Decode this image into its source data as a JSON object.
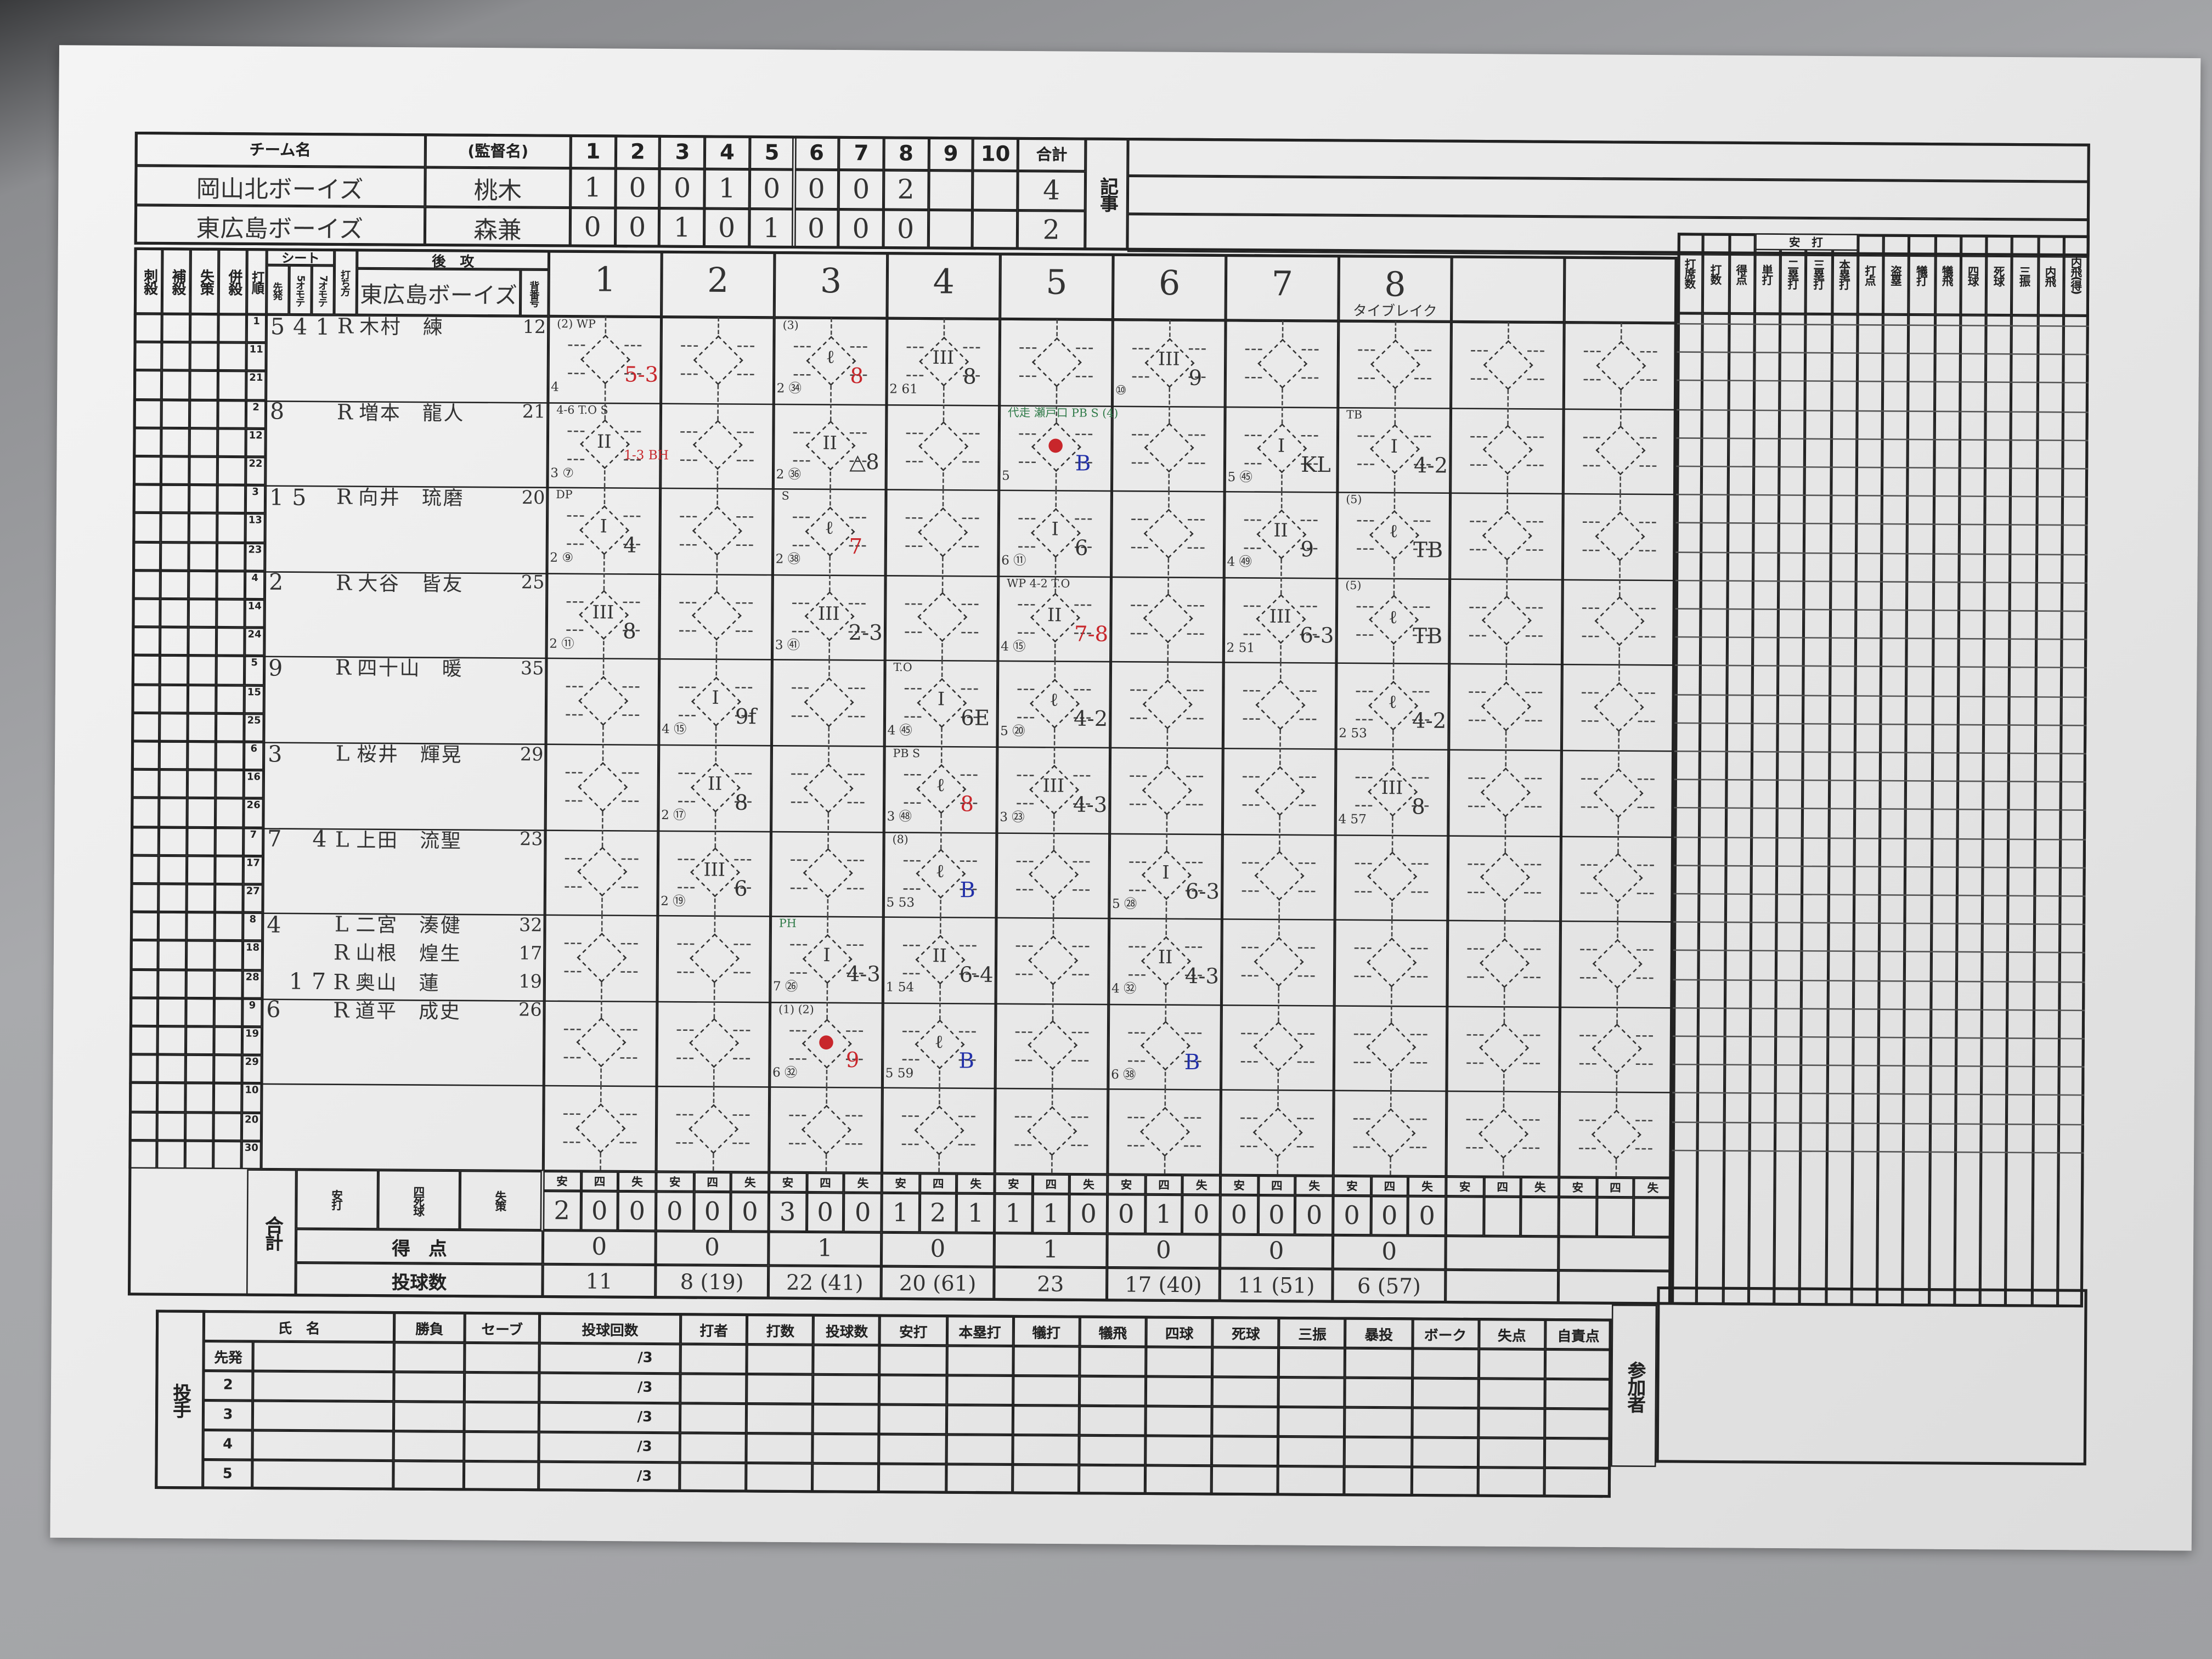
{
  "linescore": {
    "team_header": "チーム名",
    "manager_header": "(監督名)",
    "innings": [
      "1",
      "2",
      "3",
      "4",
      "5",
      "6",
      "7",
      "8",
      "9",
      "10"
    ],
    "total_header": "合計",
    "notes_header": "記事",
    "teams": [
      {
        "name": "岡山北ボーイズ",
        "manager": "桃木",
        "runs": [
          "1",
          "0",
          "0",
          "1",
          "0",
          "0",
          "0",
          "2",
          "",
          ""
        ],
        "total": "4"
      },
      {
        "name": "東広島ボーイズ",
        "manager": "森兼",
        "runs": [
          "0",
          "0",
          "1",
          "0",
          "1",
          "0",
          "0",
          "0",
          "",
          ""
        ],
        "total": "2"
      }
    ]
  },
  "scorebook": {
    "defense_headers": [
      "刺殺",
      "補殺",
      "失策",
      "併殺"
    ],
    "order_header": "打順",
    "seat_header": "シート",
    "seat_sub": [
      "先発",
      "5オモテ",
      "7オモテ"
    ],
    "bats_header": "打ち方",
    "side_header": "後　攻",
    "team_name": "東広島ボーイズ",
    "number_header": "背番号",
    "inning_labels": [
      "1",
      "2",
      "3",
      "4",
      "5",
      "6",
      "7",
      "8",
      "",
      ""
    ],
    "inning_notes": [
      "",
      "",
      "",
      "",
      "",
      "",
      "",
      "タイブレイク",
      "",
      ""
    ],
    "row_labels": [
      "1",
      "11",
      "21",
      "2",
      "12",
      "22",
      "3",
      "13",
      "23",
      "4",
      "14",
      "24",
      "5",
      "15",
      "25",
      "6",
      "16",
      "26",
      "7",
      "17",
      "27",
      "8",
      "18",
      "28",
      "9",
      "19",
      "29",
      "10",
      "20",
      "30"
    ],
    "players": [
      {
        "row": 0,
        "seats": [
          "5",
          "4",
          "1"
        ],
        "bats": "R",
        "name": "木村　練",
        "number": "12"
      },
      {
        "row": 3,
        "seats": [
          "8",
          "",
          ""
        ],
        "bats": "R",
        "name": "増本　龍人",
        "number": "21"
      },
      {
        "row": 6,
        "seats": [
          "1",
          "5",
          ""
        ],
        "bats": "R",
        "name": "向井　琉磨",
        "number": "20"
      },
      {
        "row": 9,
        "seats": [
          "2",
          "",
          ""
        ],
        "bats": "R",
        "name": "大谷　皆友",
        "number": "25"
      },
      {
        "row": 12,
        "seats": [
          "9",
          "",
          ""
        ],
        "bats": "R",
        "name": "四十山　暖",
        "number": "35"
      },
      {
        "row": 15,
        "seats": [
          "3",
          "",
          ""
        ],
        "bats": "L",
        "name": "桜井　輝晃",
        "number": "29"
      },
      {
        "row": 18,
        "seats": [
          "7",
          "",
          "4"
        ],
        "bats": "L",
        "name": "上田　流聖",
        "number": "23"
      },
      {
        "row": 21,
        "seats": [
          "4",
          "",
          ""
        ],
        "bats": "L",
        "name": "二宮　湊健",
        "number": "32"
      },
      {
        "row": 22,
        "seats": [
          "",
          "",
          ""
        ],
        "bats": "R",
        "name": "山根　煌生",
        "number": "17"
      },
      {
        "row": 23,
        "seats": [
          "",
          "1",
          "7"
        ],
        "bats": "R",
        "name": "奥山　蓮",
        "number": "19"
      },
      {
        "row": 24,
        "seats": [
          "6",
          "",
          ""
        ],
        "bats": "R",
        "name": "道平　成史",
        "number": "26"
      }
    ],
    "plays": [
      {
        "inning": 1,
        "slot": 0,
        "out": "",
        "result": "5-3",
        "result_color": "red",
        "note": "(2) WP",
        "count": "4"
      },
      {
        "inning": 1,
        "slot": 1,
        "out": "II",
        "result": "1-3 BH",
        "result_color": "red",
        "note": "4-6 T.O  S",
        "count": "3 ⑦"
      },
      {
        "inning": 1,
        "slot": 2,
        "out": "I",
        "result": "4",
        "result_color": "",
        "note": "DP",
        "count": "2 ⑨"
      },
      {
        "inning": 1,
        "slot": 3,
        "out": "III",
        "result": "8",
        "result_color": "",
        "note": "",
        "count": "2 ⑪"
      },
      {
        "inning": 2,
        "slot": 4,
        "out": "I",
        "result": "9f",
        "result_color": "",
        "note": "",
        "count": "4 ⑮"
      },
      {
        "inning": 2,
        "slot": 5,
        "out": "II",
        "result": "8",
        "result_color": "",
        "note": "",
        "count": "2 ⑰"
      },
      {
        "inning": 2,
        "slot": 6,
        "out": "III",
        "result": "6",
        "result_color": "",
        "note": "",
        "count": "2 ⑲"
      },
      {
        "inning": 3,
        "slot": 7,
        "out": "I",
        "result": "4-3",
        "result_color": "",
        "note": "PH",
        "note_color": "green",
        "count": "7 ㉖"
      },
      {
        "inning": 3,
        "slot": 8,
        "out": "●",
        "result": "9",
        "result_color": "red",
        "note": "(1) (2)",
        "count": "6 ㉜"
      },
      {
        "inning": 3,
        "slot": 0,
        "out": "ℓ",
        "result": "8",
        "result_color": "red",
        "note": "(3)",
        "count": "2 ㉞"
      },
      {
        "inning": 3,
        "slot": 1,
        "out": "II",
        "result": "△8",
        "result_color": "",
        "note": "",
        "count": "2 ㊱"
      },
      {
        "inning": 3,
        "slot": 2,
        "out": "ℓ",
        "result": "7",
        "result_color": "red",
        "note": "S",
        "count": "2 ㊳"
      },
      {
        "inning": 3,
        "slot": 3,
        "out": "III",
        "result": "2-3",
        "result_color": "",
        "note": "",
        "count": "3 ㊶"
      },
      {
        "inning": 4,
        "slot": 4,
        "out": "I",
        "result": "6E",
        "result_color": "",
        "note": "T.O",
        "count": "4 ㊺"
      },
      {
        "inning": 4,
        "slot": 5,
        "out": "ℓ",
        "result": "8",
        "result_color": "red",
        "note": "PB S",
        "count": "3 ㊽"
      },
      {
        "inning": 4,
        "slot": 6,
        "out": "ℓ",
        "result": "B",
        "result_color": "blue",
        "note": "(8)",
        "count": "5 53"
      },
      {
        "inning": 4,
        "slot": 7,
        "out": "II",
        "result": "6-4",
        "result_color": "",
        "note": "",
        "count": "1 54"
      },
      {
        "inning": 4,
        "slot": 8,
        "out": "ℓ",
        "result": "B",
        "result_color": "blue",
        "note": "",
        "count": "5 59"
      },
      {
        "inning": 4,
        "slot": 0,
        "out": "III",
        "result": "8",
        "result_color": "",
        "note": "",
        "count": "2 61"
      },
      {
        "inning": 5,
        "slot": 1,
        "out": "●",
        "result": "B",
        "result_color": "blue",
        "note": "代走 瀬戸口 PB S (4)",
        "note_color": "green",
        "count": "5"
      },
      {
        "inning": 5,
        "slot": 2,
        "out": "I",
        "result": "6",
        "result_color": "",
        "note": "",
        "count": "6 ⑪"
      },
      {
        "inning": 5,
        "slot": 3,
        "out": "II",
        "result": "7-8",
        "result_color": "red",
        "note": "WP 4-2 T.O",
        "count": "4 ⑮"
      },
      {
        "inning": 5,
        "slot": 4,
        "out": "ℓ",
        "result": "4-2",
        "result_color": "",
        "note": "",
        "count": "5 ⑳"
      },
      {
        "inning": 5,
        "slot": 5,
        "out": "III",
        "result": "4-3",
        "result_color": "",
        "note": "",
        "count": "3 ㉓"
      },
      {
        "inning": 6,
        "slot": 0,
        "out": "III",
        "result": "9",
        "result_color": "",
        "note": "",
        "count": "⑩"
      },
      {
        "inning": 6,
        "slot": 6,
        "out": "I",
        "result": "6-3",
        "result_color": "",
        "note": "",
        "count": "5 ㉘"
      },
      {
        "inning": 6,
        "slot": 7,
        "out": "II",
        "result": "4-3",
        "result_color": "",
        "note": "",
        "count": "4 ㉜"
      },
      {
        "inning": 6,
        "slot": 8,
        "out": "",
        "result": "B",
        "result_color": "blue",
        "note": "",
        "count": "6 ㊳"
      },
      {
        "inning": 7,
        "slot": 1,
        "out": "I",
        "result": "KL",
        "result_color": "",
        "note": "",
        "count": "5 ㊺"
      },
      {
        "inning": 7,
        "slot": 2,
        "out": "II",
        "result": "9",
        "result_color": "",
        "note": "",
        "count": "4 ㊾"
      },
      {
        "inning": 7,
        "slot": 3,
        "out": "III",
        "result": "6-3",
        "result_color": "",
        "note": "",
        "count": "2 51"
      },
      {
        "inning": 8,
        "slot": 1,
        "out": "I",
        "result": "4-2",
        "result_color": "",
        "note": "TB",
        "count": ""
      },
      {
        "inning": 8,
        "slot": 2,
        "out": "ℓ",
        "result": "TB",
        "result_color": "",
        "note": "(5)",
        "count": ""
      },
      {
        "inning": 8,
        "slot": 3,
        "out": "ℓ",
        "result": "TB",
        "result_color": "",
        "note": "(5)",
        "count": ""
      },
      {
        "inning": 8,
        "slot": 4,
        "out": "ℓ",
        "result": "4-2",
        "result_color": "",
        "note": "",
        "count": "2 53"
      },
      {
        "inning": 8,
        "slot": 5,
        "out": "III",
        "result": "8",
        "result_color": "",
        "note": "",
        "count": "4 57"
      }
    ],
    "stat_headers": [
      "打席数",
      "打数",
      "得点",
      "単打",
      "二塁打",
      "三塁打",
      "本塁打",
      "打点",
      "盗塁",
      "犠打",
      "犠飛",
      "四球",
      "死球",
      "三振",
      "内飛",
      "内飛(得)"
    ],
    "stat_group_header": "安　打"
  },
  "totals": {
    "label": "合計",
    "sub_labels": [
      "安打",
      "四死球",
      "失策"
    ],
    "cols": [
      "安",
      "四",
      "失"
    ],
    "runs_label": "得　点",
    "pitches_label": "投球数",
    "per_inning": [
      {
        "hits": "2",
        "walks": "0",
        "errors": "0",
        "runs": "0",
        "pitches": "11"
      },
      {
        "hits": "0",
        "walks": "0",
        "errors": "0",
        "runs": "0",
        "pitches": "8 (19)"
      },
      {
        "hits": "3",
        "walks": "0",
        "errors": "0",
        "runs": "1",
        "pitches": "22 (41)"
      },
      {
        "hits": "1",
        "walks": "2",
        "errors": "1",
        "runs": "0",
        "pitches": "20 (61)"
      },
      {
        "hits": "1",
        "walks": "1",
        "errors": "0",
        "runs": "1",
        "pitches": "23"
      },
      {
        "hits": "0",
        "walks": "1",
        "errors": "0",
        "runs": "0",
        "pitches": "17 (40)"
      },
      {
        "hits": "0",
        "walks": "0",
        "errors": "0",
        "runs": "0",
        "pitches": "11 (51)"
      },
      {
        "hits": "0",
        "walks": "0",
        "errors": "0",
        "runs": "0",
        "pitches": "6 (57)"
      },
      {
        "hits": "",
        "walks": "",
        "errors": "",
        "runs": "",
        "pitches": ""
      },
      {
        "hits": "",
        "walks": "",
        "errors": "",
        "runs": "",
        "pitches": ""
      }
    ]
  },
  "pitchers": {
    "side_label": "投手",
    "headers": [
      "氏　名",
      "勝負",
      "セーブ",
      "投球回数",
      "打者",
      "打数",
      "投球数",
      "安打",
      "本塁打",
      "犠打",
      "犠飛",
      "四球",
      "死球",
      "三振",
      "暴投",
      "ボーク",
      "失点",
      "自責点"
    ],
    "rows": [
      "先発",
      "2",
      "3",
      "4",
      "5"
    ],
    "innings_suffix": "/3",
    "participants_label": "参加者"
  }
}
